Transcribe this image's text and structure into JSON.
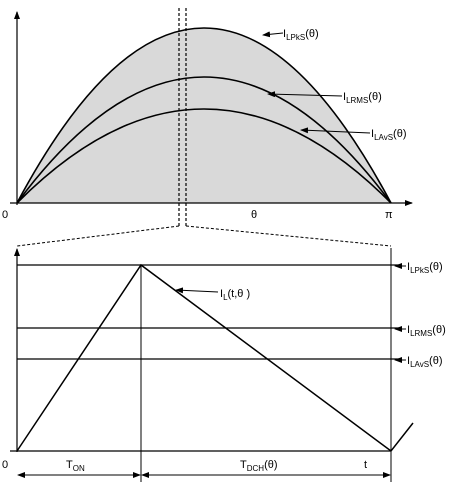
{
  "top_plot": {
    "origin_label": "0",
    "x_label": "θ",
    "end_label": "π",
    "curves": [
      {
        "base": "I",
        "sub": "LPkS",
        "suffix": "(θ)"
      },
      {
        "base": "I",
        "sub": "LRMS",
        "suffix": "(θ)"
      },
      {
        "base": "I",
        "sub": "LAvS",
        "suffix": "(θ)"
      }
    ]
  },
  "bottom_plot": {
    "origin_label": "0",
    "end_label": "t",
    "waveform": {
      "base": "I",
      "sub": "L",
      "suffix": "(t,θ )"
    },
    "levels": [
      {
        "base": "I",
        "sub": "LPkS",
        "suffix": "(θ)"
      },
      {
        "base": "I",
        "sub": "LRMS",
        "suffix": "(θ)"
      },
      {
        "base": "I",
        "sub": "LAvS",
        "suffix": "(θ)"
      }
    ],
    "intervals": [
      {
        "base": "T",
        "sub": "ON",
        "suffix": ""
      },
      {
        "base": "T",
        "sub": "DCH",
        "suffix": "(θ)"
      }
    ]
  }
}
